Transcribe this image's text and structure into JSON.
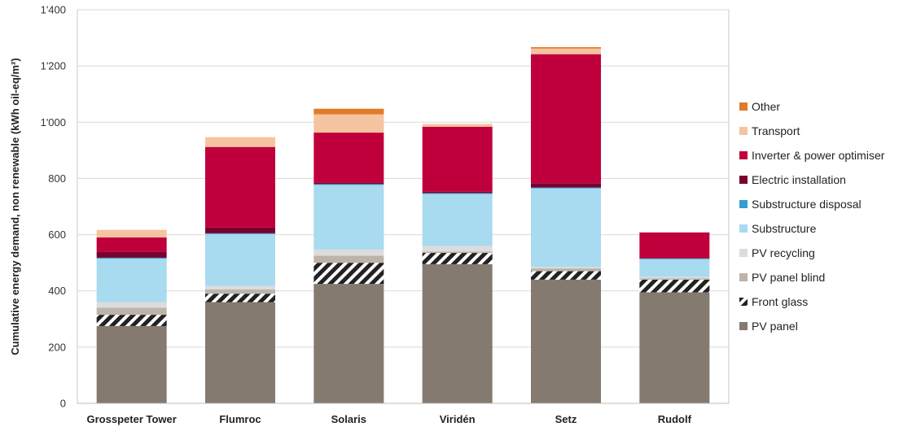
{
  "chart_data": {
    "type": "bar",
    "stacked": true,
    "title": "",
    "xlabel": "",
    "ylabel": "Cumulative energy demand, non renewable (kWh oil-eq/m²)",
    "ylim": [
      0,
      1400
    ],
    "yticks": [
      0,
      200,
      400,
      600,
      800,
      1000,
      1200,
      1400
    ],
    "ytick_labels": [
      "0",
      "200",
      "400",
      "600",
      "800",
      "1'000",
      "1'200",
      "1'400"
    ],
    "grid": true,
    "legend_position": "right",
    "categories": [
      "Grosspeter Tower",
      "Flumroc",
      "Solaris",
      "Viridén",
      "Setz",
      "Rudolf"
    ],
    "series": [
      {
        "name": "PV panel",
        "color": "#857a70",
        "pattern": "none",
        "values": [
          275,
          360,
          425,
          495,
          440,
          395
        ]
      },
      {
        "name": "Front glass",
        "color": "#222222",
        "pattern": "hatch",
        "values": [
          40,
          30,
          75,
          40,
          30,
          45
        ]
      },
      {
        "name": "PV panel blind",
        "color": "#bcb4aa",
        "pattern": "none",
        "values": [
          25,
          15,
          25,
          5,
          10,
          5
        ]
      },
      {
        "name": "PV recycling",
        "color": "#dcdcdc",
        "pattern": "none",
        "values": [
          20,
          12,
          22,
          20,
          5,
          5
        ]
      },
      {
        "name": "Substructure",
        "color": "#a8daf0",
        "pattern": "none",
        "values": [
          155,
          185,
          230,
          185,
          280,
          63
        ]
      },
      {
        "name": "Substructure disposal",
        "color": "#2f9fd0",
        "pattern": "none",
        "values": [
          3,
          3,
          3,
          3,
          3,
          2
        ]
      },
      {
        "name": "Electric installation",
        "color": "#7a0030",
        "pattern": "none",
        "values": [
          22,
          20,
          5,
          5,
          15,
          2
        ]
      },
      {
        "name": "Inverter & power optimiser",
        "color": "#c0003c",
        "pattern": "none",
        "values": [
          50,
          287,
          178,
          231,
          459,
          91
        ]
      },
      {
        "name": "Transport",
        "color": "#f5c4a1",
        "pattern": "none",
        "values": [
          27,
          35,
          65,
          10,
          20,
          0
        ]
      },
      {
        "name": "Other",
        "color": "#e07b28",
        "pattern": "none",
        "values": [
          0,
          0,
          20,
          0,
          5,
          0
        ]
      }
    ]
  }
}
